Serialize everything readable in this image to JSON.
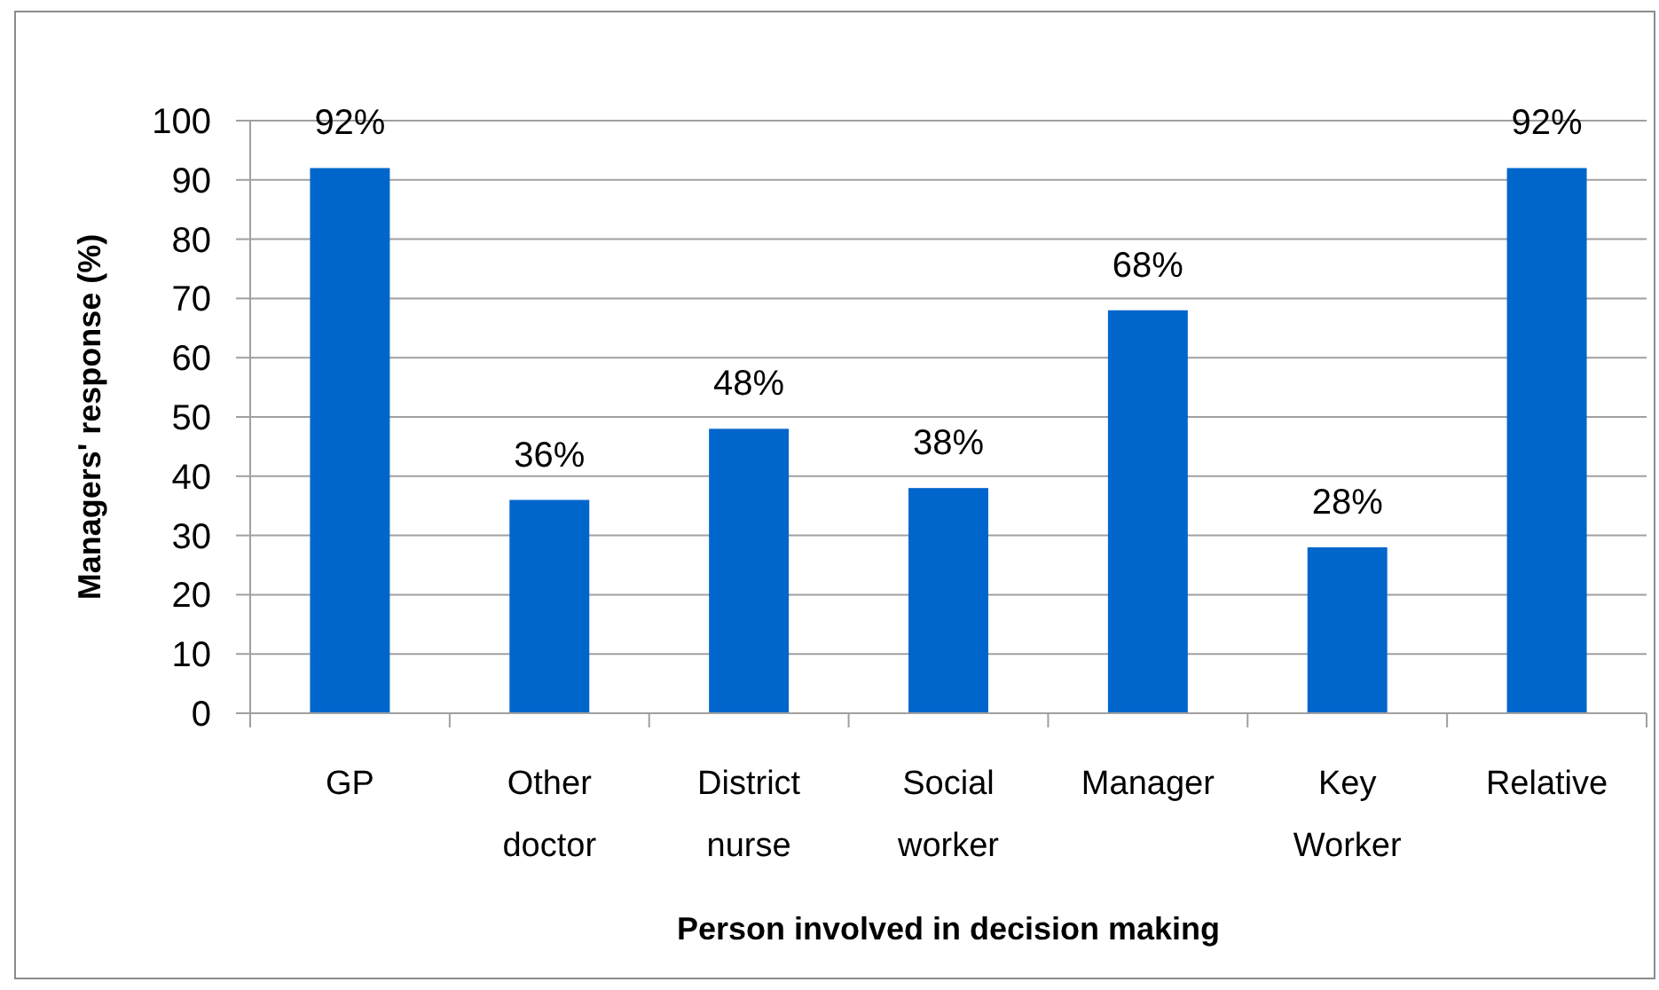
{
  "chart_data": {
    "type": "bar",
    "xlabel": "Person involved in decision making",
    "ylabel": "Managers' response (%)",
    "categories": [
      "GP",
      "Other doctor",
      "District nurse",
      "Social worker",
      "Manager",
      "Key Worker",
      "Relative"
    ],
    "values": [
      92,
      36,
      48,
      38,
      68,
      28,
      92
    ],
    "color": "#0066cc",
    "value_labels": [
      "92%",
      "36%",
      "48%",
      "38%",
      "68%",
      "28%",
      "92%"
    ],
    "ylim": [
      0,
      100
    ],
    "yticks": [
      0,
      10,
      20,
      30,
      40,
      50,
      60,
      70,
      80,
      90,
      100
    ],
    "grid": "y"
  }
}
